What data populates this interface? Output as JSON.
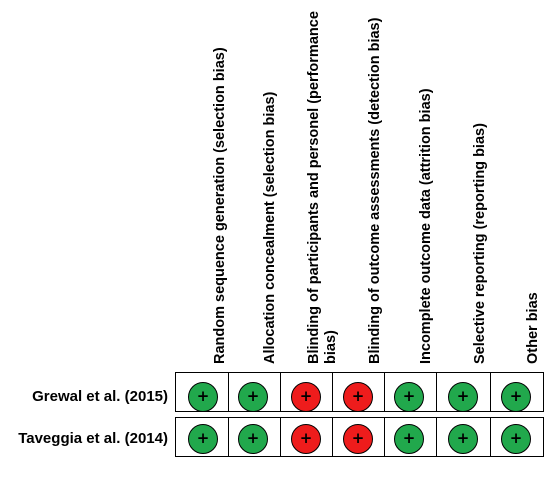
{
  "columns": [
    {
      "lines": [
        "Random sequence generation (selection bias)"
      ]
    },
    {
      "lines": [
        "Allocation concealment (selection bias)"
      ]
    },
    {
      "lines": [
        "Blinding of participants and personel (performance",
        "bias)"
      ]
    },
    {
      "lines": [
        "Blinding of outcome assessments (detection bias)"
      ]
    },
    {
      "lines": [
        "Incomplete outcome data (attrition bias)"
      ]
    },
    {
      "lines": [
        "Selective reporting (reporting bias)"
      ]
    },
    {
      "lines": [
        "Other bias"
      ]
    }
  ],
  "rows": [
    {
      "label": "Grewal et al. (2015)",
      "judgements": [
        "low",
        "low",
        "high",
        "high",
        "low",
        "low",
        "low"
      ]
    },
    {
      "label": "Taveggia et al. (2014)",
      "judgements": [
        "low",
        "low",
        "high",
        "high",
        "low",
        "low",
        "low"
      ]
    }
  ],
  "symbol": "+",
  "colors": {
    "low": "#21a84c",
    "high": "#ee1c1c",
    "border": "#000000"
  }
}
